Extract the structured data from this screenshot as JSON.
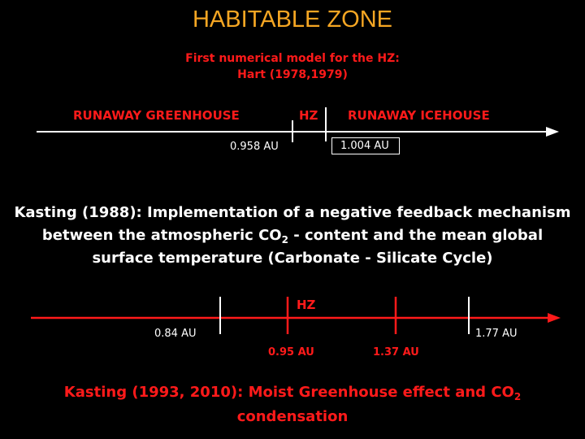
{
  "title": "HABITABLE ZONE",
  "subtitle_line1": "First numerical model for the HZ:",
  "subtitle_line2": "Hart (1978,1979)",
  "hart": {
    "left_label": "RUNAWAY GREENHOUSE",
    "hz_label": "HZ",
    "right_label": "RUNAWAY ICEHOUSE",
    "inner_au": "0.958 AU",
    "outer_au": "1.004 AU"
  },
  "kasting1988": {
    "line1": "Kasting (1988): Implementation of a negative feedback mechanism",
    "line2_pre": "between the atmospheric CO",
    "line2_sub": "2",
    "line2_post": " - content and the mean global",
    "line3": "surface temperature (Carbonate - Silicate Cycle)"
  },
  "kasting_axis": {
    "hz_label": "HZ",
    "au_084": "0.84 AU",
    "au_095": "0.95 AU",
    "au_137": "1.37 AU",
    "au_177": "1.77 AU"
  },
  "kasting1993": {
    "line1_pre": "Kasting (1993, 2010): Moist Greenhouse effect and CO",
    "line1_sub": "2",
    "line2": "condensation"
  },
  "colors": {
    "title": "#F5A623",
    "accent_red": "#FF1A1A",
    "text": "#FFFFFF",
    "background": "#000000"
  }
}
